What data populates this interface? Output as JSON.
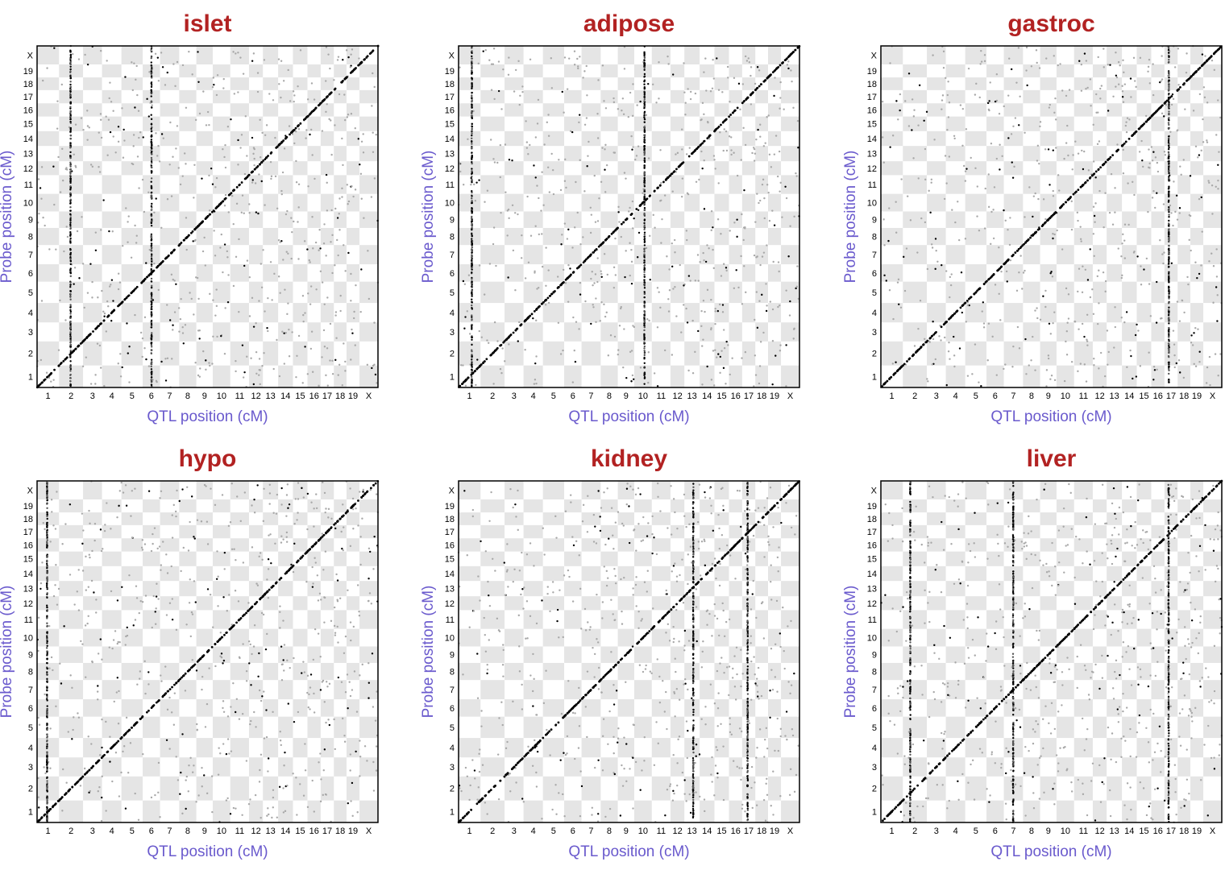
{
  "colors": {
    "title": "#b22222",
    "axis_label": "#6a5acd",
    "checker_shade": "#e5e5e5",
    "point_dark": "#000000",
    "point_light": "#a8a8a8"
  },
  "chart_data": [
    {
      "type": "scatter",
      "title": "islet",
      "xlabel": "QTL position (cM)",
      "ylabel": "Probe position (cM)",
      "x_ticks": [
        "1",
        "2",
        "3",
        "4",
        "5",
        "6",
        "7",
        "8",
        "9",
        "10",
        "11",
        "12",
        "13",
        "14",
        "15",
        "16",
        "17",
        "18",
        "19",
        "X"
      ],
      "y_ticks": [
        "1",
        "2",
        "3",
        "4",
        "5",
        "6",
        "7",
        "8",
        "9",
        "10",
        "11",
        "12",
        "13",
        "14",
        "15",
        "16",
        "17",
        "18",
        "19",
        "X"
      ],
      "hotspot_chromosomes": [
        "2",
        "6"
      ],
      "background": "checkerboard-by-chromosome",
      "diagonal": true
    },
    {
      "type": "scatter",
      "title": "adipose",
      "xlabel": "QTL position (cM)",
      "ylabel": "Probe position (cM)",
      "x_ticks": [
        "1",
        "2",
        "3",
        "4",
        "5",
        "6",
        "7",
        "8",
        "9",
        "10",
        "11",
        "12",
        "13",
        "14",
        "15",
        "16",
        "17",
        "18",
        "19",
        "X"
      ],
      "y_ticks": [
        "1",
        "2",
        "3",
        "4",
        "5",
        "6",
        "7",
        "8",
        "9",
        "10",
        "11",
        "12",
        "13",
        "14",
        "15",
        "16",
        "17",
        "18",
        "19",
        "X"
      ],
      "hotspot_chromosomes": [
        "1",
        "10"
      ],
      "background": "checkerboard-by-chromosome",
      "diagonal": true
    },
    {
      "type": "scatter",
      "title": "gastroc",
      "xlabel": "QTL position (cM)",
      "ylabel": "Probe position (cM)",
      "x_ticks": [
        "1",
        "2",
        "3",
        "4",
        "5",
        "6",
        "7",
        "8",
        "9",
        "10",
        "11",
        "12",
        "13",
        "14",
        "15",
        "16",
        "17",
        "18",
        "19",
        "X"
      ],
      "y_ticks": [
        "1",
        "2",
        "3",
        "4",
        "5",
        "6",
        "7",
        "8",
        "9",
        "10",
        "11",
        "12",
        "13",
        "14",
        "15",
        "16",
        "17",
        "18",
        "19",
        "X"
      ],
      "hotspot_chromosomes": [
        "17"
      ],
      "background": "checkerboard-by-chromosome",
      "diagonal": true
    },
    {
      "type": "scatter",
      "title": "hypo",
      "xlabel": "QTL position (cM)",
      "ylabel": "Probe position (cM)",
      "x_ticks": [
        "1",
        "2",
        "3",
        "4",
        "5",
        "6",
        "7",
        "8",
        "9",
        "10",
        "11",
        "12",
        "13",
        "14",
        "15",
        "16",
        "17",
        "18",
        "19",
        "X"
      ],
      "y_ticks": [
        "1",
        "2",
        "3",
        "4",
        "5",
        "6",
        "7",
        "8",
        "9",
        "10",
        "11",
        "12",
        "13",
        "14",
        "15",
        "16",
        "17",
        "18",
        "19",
        "X"
      ],
      "hotspot_chromosomes": [
        "1"
      ],
      "background": "checkerboard-by-chromosome",
      "diagonal": true
    },
    {
      "type": "scatter",
      "title": "kidney",
      "xlabel": "QTL position (cM)",
      "ylabel": "Probe position (cM)",
      "x_ticks": [
        "1",
        "2",
        "3",
        "4",
        "5",
        "6",
        "7",
        "8",
        "9",
        "10",
        "11",
        "12",
        "13",
        "14",
        "15",
        "16",
        "17",
        "18",
        "19",
        "X"
      ],
      "y_ticks": [
        "1",
        "2",
        "3",
        "4",
        "5",
        "6",
        "7",
        "8",
        "9",
        "10",
        "11",
        "12",
        "13",
        "14",
        "15",
        "16",
        "17",
        "18",
        "19",
        "X"
      ],
      "hotspot_chromosomes": [
        "13",
        "17"
      ],
      "background": "checkerboard-by-chromosome",
      "diagonal": true
    },
    {
      "type": "scatter",
      "title": "liver",
      "xlabel": "QTL position (cM)",
      "ylabel": "Probe position (cM)",
      "x_ticks": [
        "1",
        "2",
        "3",
        "4",
        "5",
        "6",
        "7",
        "8",
        "9",
        "10",
        "11",
        "12",
        "13",
        "14",
        "15",
        "16",
        "17",
        "18",
        "19",
        "X"
      ],
      "y_ticks": [
        "1",
        "2",
        "3",
        "4",
        "5",
        "6",
        "7",
        "8",
        "9",
        "10",
        "11",
        "12",
        "13",
        "14",
        "15",
        "16",
        "17",
        "18",
        "19",
        "X"
      ],
      "hotspot_chromosomes": [
        "2",
        "7",
        "17"
      ],
      "background": "checkerboard-by-chromosome",
      "diagonal": true
    }
  ]
}
